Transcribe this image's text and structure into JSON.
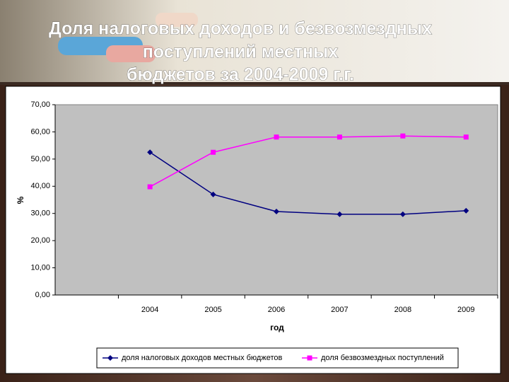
{
  "chart_data": {
    "type": "line",
    "title": [
      "Доля налоговых доходов и безвозмездных",
      "поступлений местных",
      "бюджетов за 2004-2009 г.г."
    ],
    "x_label": "год",
    "y_label": "%",
    "categories": [
      null,
      "2004",
      "2005",
      "2006",
      "2007",
      "2008",
      "2009"
    ],
    "series": [
      {
        "name": "доля налоговых доходов местных бюджетов",
        "color": "#000080",
        "marker": "diamond",
        "values": [
          null,
          52.5,
          37.0,
          30.7,
          29.7,
          29.7,
          31.0
        ]
      },
      {
        "name": "доля безвозмездных поступлений",
        "color": "#ff00ff",
        "marker": "square",
        "values": [
          null,
          39.8,
          52.5,
          58.1,
          58.1,
          58.5,
          58.1
        ]
      }
    ],
    "ylim": [
      0,
      70
    ],
    "yticks": [
      {
        "value": 0,
        "label": "0,00"
      },
      {
        "value": 10,
        "label": "10,00"
      },
      {
        "value": 20,
        "label": "20,00"
      },
      {
        "value": 30,
        "label": "30,00"
      },
      {
        "value": 40,
        "label": "40,00"
      },
      {
        "value": 50,
        "label": "50,00"
      },
      {
        "value": 60,
        "label": "60,00"
      },
      {
        "value": 70,
        "label": "70,00"
      }
    ],
    "grid": false,
    "legend": "bottom"
  }
}
